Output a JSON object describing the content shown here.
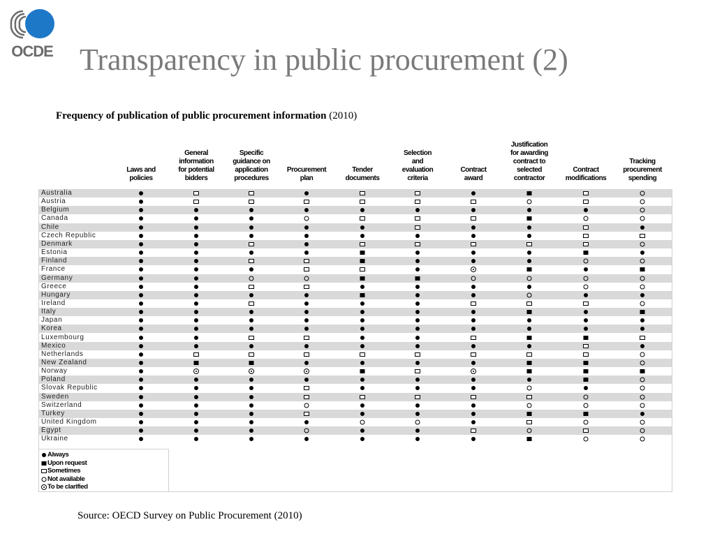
{
  "logo": {
    "text": "OCDE",
    "icon": "oecd-logo-icon",
    "brand_color": "#1e78c8"
  },
  "title": "Transparency in public procurement (2)",
  "subtitle": {
    "bold": "Frequency of publication of public procurement information",
    "rest": " (2010)"
  },
  "columns": [
    "Laws and\npolicies",
    "General\ninformation\nfor potential\nbidders",
    "Specific\nguidance on\napplication\nprocedures",
    "Procurement\nplan",
    "Tender\ndocuments",
    "Selection\nand\nevaluation\ncriteria",
    "Contract\naward",
    "Justification\nfor awarding\ncontract to\nselected\ncontractor",
    "Contract\nmodifications",
    "Tracking\nprocurement\nspending"
  ],
  "rows": [
    {
      "country": "Australia",
      "values": [
        "A",
        "S",
        "S",
        "A",
        "S",
        "S",
        "A",
        "R",
        "S",
        "N"
      ]
    },
    {
      "country": "Austria",
      "values": [
        "A",
        "S",
        "S",
        "S",
        "S",
        "S",
        "S",
        "N",
        "S",
        "N"
      ]
    },
    {
      "country": "Belgium",
      "values": [
        "A",
        "A",
        "A",
        "A",
        "A",
        "A",
        "A",
        "A",
        "A",
        "N"
      ]
    },
    {
      "country": "Canada",
      "values": [
        "A",
        "A",
        "A",
        "N",
        "S",
        "S",
        "S",
        "R",
        "N",
        "N"
      ]
    },
    {
      "country": "Chile",
      "values": [
        "A",
        "A",
        "A",
        "A",
        "A",
        "S",
        "A",
        "A",
        "S",
        "A"
      ]
    },
    {
      "country": "Czech Republic",
      "values": [
        "A",
        "A",
        "A",
        "A",
        "A",
        "A",
        "A",
        "A",
        "S",
        "S"
      ]
    },
    {
      "country": "Denmark",
      "values": [
        "A",
        "A",
        "S",
        "A",
        "S",
        "S",
        "S",
        "S",
        "S",
        "N"
      ]
    },
    {
      "country": "Estonia",
      "values": [
        "A",
        "A",
        "A",
        "A",
        "R",
        "A",
        "A",
        "A",
        "R",
        "A"
      ]
    },
    {
      "country": "Finland",
      "values": [
        "A",
        "A",
        "S",
        "S",
        "R",
        "A",
        "A",
        "A",
        "N",
        "N"
      ]
    },
    {
      "country": "France",
      "values": [
        "A",
        "A",
        "A",
        "S",
        "S",
        "A",
        "T",
        "R",
        "A",
        "R"
      ]
    },
    {
      "country": "Germany",
      "values": [
        "A",
        "A",
        "N",
        "N",
        "R",
        "R",
        "N",
        "N",
        "N",
        "N"
      ]
    },
    {
      "country": "Greece",
      "values": [
        "A",
        "A",
        "S",
        "S",
        "A",
        "A",
        "A",
        "A",
        "N",
        "N"
      ]
    },
    {
      "country": "Hungary",
      "values": [
        "A",
        "A",
        "A",
        "A",
        "R",
        "A",
        "A",
        "N",
        "A",
        "A"
      ]
    },
    {
      "country": "Ireland",
      "values": [
        "A",
        "A",
        "S",
        "A",
        "A",
        "A",
        "S",
        "S",
        "S",
        "N"
      ]
    },
    {
      "country": "Italy",
      "values": [
        "A",
        "A",
        "A",
        "A",
        "A",
        "A",
        "A",
        "R",
        "A",
        "R"
      ]
    },
    {
      "country": "Japan",
      "values": [
        "A",
        "A",
        "A",
        "A",
        "A",
        "A",
        "A",
        "A",
        "A",
        "A"
      ]
    },
    {
      "country": "Korea",
      "values": [
        "A",
        "A",
        "A",
        "A",
        "A",
        "A",
        "A",
        "A",
        "A",
        "A"
      ]
    },
    {
      "country": "Luxembourg",
      "values": [
        "A",
        "A",
        "S",
        "S",
        "A",
        "A",
        "S",
        "R",
        "R",
        "S"
      ]
    },
    {
      "country": "Mexico",
      "values": [
        "A",
        "A",
        "A",
        "A",
        "A",
        "A",
        "A",
        "A",
        "S",
        "A"
      ]
    },
    {
      "country": "Netherlands",
      "values": [
        "A",
        "S",
        "S",
        "S",
        "S",
        "S",
        "S",
        "S",
        "S",
        "N"
      ]
    },
    {
      "country": "New Zealand",
      "values": [
        "A",
        "R",
        "R",
        "A",
        "A",
        "A",
        "A",
        "R",
        "R",
        "N"
      ]
    },
    {
      "country": "Norway",
      "values": [
        "A",
        "T",
        "T",
        "T",
        "R",
        "S",
        "T",
        "R",
        "R",
        "R"
      ]
    },
    {
      "country": "Poland",
      "values": [
        "A",
        "A",
        "A",
        "A",
        "A",
        "A",
        "A",
        "A",
        "R",
        "N"
      ]
    },
    {
      "country": "Slovak Republic",
      "values": [
        "A",
        "A",
        "A",
        "S",
        "A",
        "A",
        "A",
        "N",
        "A",
        "N"
      ]
    },
    {
      "country": "Sweden",
      "values": [
        "A",
        "A",
        "A",
        "S",
        "S",
        "S",
        "S",
        "S",
        "N",
        "N"
      ]
    },
    {
      "country": "Switzerland",
      "values": [
        "A",
        "A",
        "A",
        "N",
        "A",
        "A",
        "A",
        "N",
        "N",
        "N"
      ]
    },
    {
      "country": "Turkey",
      "values": [
        "A",
        "A",
        "A",
        "S",
        "A",
        "A",
        "A",
        "R",
        "R",
        "A"
      ]
    },
    {
      "country": "United Kingdom",
      "values": [
        "A",
        "A",
        "A",
        "A",
        "N",
        "N",
        "A",
        "S",
        "N",
        "N"
      ]
    },
    {
      "country": "Egypt",
      "values": [
        "A",
        "A",
        "A",
        "N",
        "A",
        "A",
        "S",
        "N",
        "S",
        "N"
      ]
    },
    {
      "country": "Ukraine",
      "values": [
        "A",
        "A",
        "A",
        "A",
        "A",
        "A",
        "A",
        "R",
        "N",
        "N"
      ]
    }
  ],
  "legend": [
    {
      "code": "A",
      "label": "Always"
    },
    {
      "code": "R",
      "label": "Upon request"
    },
    {
      "code": "S",
      "label": "Sometimes"
    },
    {
      "code": "N",
      "label": "Not available"
    },
    {
      "code": "T",
      "label": "To be clarified"
    }
  ],
  "source": "Source: OECD Survey on Public Procurement (2010)"
}
